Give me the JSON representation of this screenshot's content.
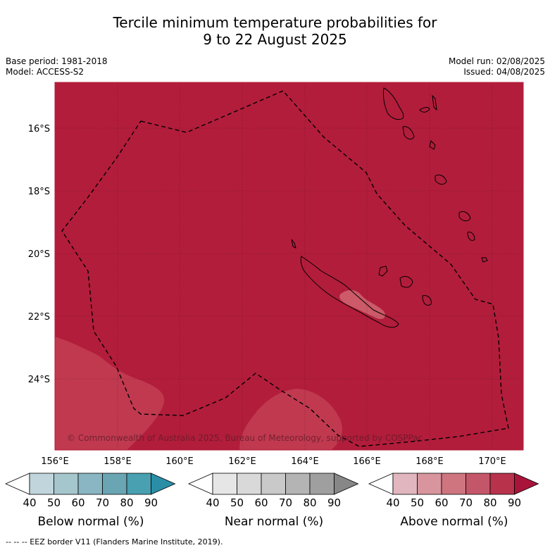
{
  "title": {
    "line1": "Tercile minimum temperature probabilities for",
    "line2": "9 to 22 August 2025"
  },
  "meta": {
    "base_period": "Base period: 1981-2018",
    "model": "Model: ACCESS-S2",
    "model_run": "Model run: 02/08/2025",
    "issued": "Issued: 04/08/2025"
  },
  "map": {
    "background_color": "#b21d3b",
    "lighter_color": "#c0394f",
    "lightest_color": "#cc5a68",
    "coastline_color": "#000000",
    "lat_labels": [
      "16°S",
      "18°S",
      "20°S",
      "22°S",
      "24°S"
    ],
    "lon_labels": [
      "156°E",
      "158°E",
      "160°E",
      "162°E",
      "164°E",
      "166°E",
      "168°E",
      "170°E"
    ],
    "copyright": "© Commonwealth of Australia 2025, Bureau of Meteorology, supported by COSPPac"
  },
  "colorbars": {
    "ticks": [
      "40",
      "50",
      "60",
      "70",
      "80",
      "90"
    ],
    "below": {
      "label": "Below normal (%)",
      "colors": [
        "#ffffff",
        "#c1d6dc",
        "#a6c6cd",
        "#89b6c2",
        "#6aa5b4",
        "#48a0b1",
        "#2a8ea7"
      ]
    },
    "near": {
      "label": "Near normal (%)",
      "colors": [
        "#ffffff",
        "#e6e6e6",
        "#d9d9d9",
        "#c9c9c9",
        "#b4b4b4",
        "#9f9f9f",
        "#878787"
      ]
    },
    "above": {
      "label": "Above normal (%)",
      "colors": [
        "#ffffff",
        "#e1b6be",
        "#d8959d",
        "#ce7580",
        "#c45669",
        "#b8324c",
        "#a8143a"
      ]
    }
  },
  "footer": "-- -- -- EEZ border V11 (Flanders Marine Institute, 2019)."
}
